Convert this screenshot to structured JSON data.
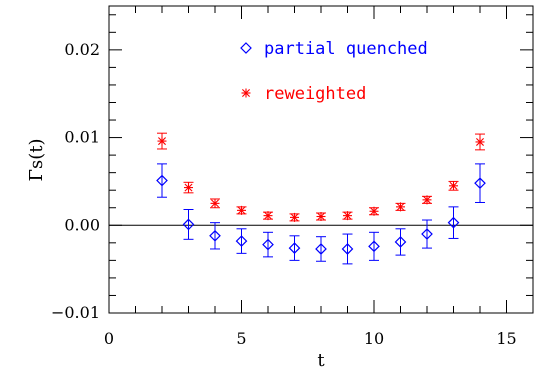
{
  "chart_data": {
    "type": "scatter",
    "xlabel": "t",
    "ylabel": "Γs(t)",
    "xlim": [
      0,
      16
    ],
    "ylim": [
      -0.01,
      0.025
    ],
    "x_ticks": [
      0,
      5,
      10,
      15
    ],
    "x_tick_labels": [
      "0",
      "5",
      "10",
      "15"
    ],
    "y_ticks": [
      -0.01,
      0.0,
      0.01,
      0.02
    ],
    "y_tick_labels": [
      "−0.01",
      "0.00",
      "0.01",
      "0.02"
    ],
    "x_minor_step": 1,
    "y_minor_step": 0.002,
    "zero_line": true,
    "grid": false,
    "legend_position": "top-center",
    "series": [
      {
        "name": "partial quenched",
        "color": "#0000ff",
        "marker": "diamond",
        "x": [
          2,
          3,
          4,
          5,
          6,
          7,
          8,
          9,
          10,
          11,
          12,
          13,
          14
        ],
        "y": [
          0.0051,
          0.0001,
          -0.0012,
          -0.0018,
          -0.0022,
          -0.0026,
          -0.0027,
          -0.0027,
          -0.0024,
          -0.0019,
          -0.001,
          0.0003,
          0.0048
        ],
        "err": [
          0.0019,
          0.0017,
          0.0015,
          0.0014,
          0.0014,
          0.0014,
          0.0014,
          0.0017,
          0.0016,
          0.0015,
          0.0016,
          0.0018,
          0.0022
        ]
      },
      {
        "name": "reweighted",
        "color": "#ff0000",
        "marker": "asterisk",
        "x": [
          2,
          3,
          4,
          5,
          6,
          7,
          8,
          9,
          10,
          11,
          12,
          13,
          14
        ],
        "y": [
          0.0096,
          0.0043,
          0.0025,
          0.0017,
          0.0011,
          0.0009,
          0.001,
          0.0011,
          0.0016,
          0.0021,
          0.0029,
          0.0045,
          0.0095
        ],
        "err": [
          0.0009,
          0.0006,
          0.0005,
          0.0004,
          0.0004,
          0.0004,
          0.0004,
          0.0004,
          0.0004,
          0.0004,
          0.0004,
          0.0005,
          0.0009
        ]
      }
    ]
  }
}
